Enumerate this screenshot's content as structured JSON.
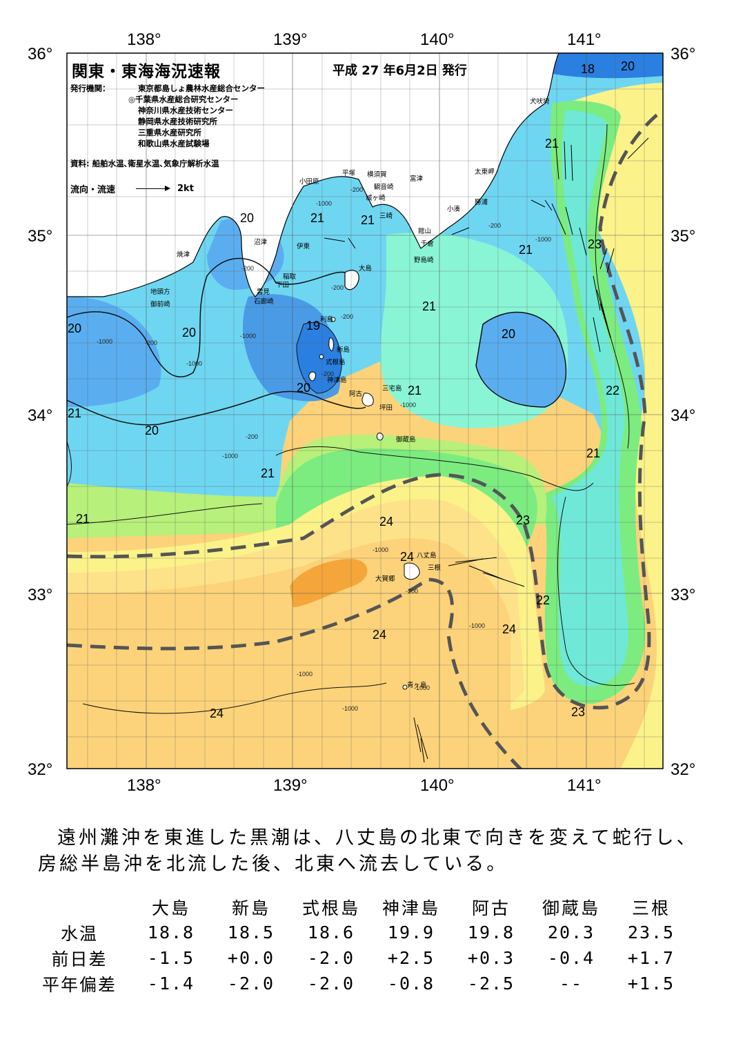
{
  "header": {
    "title": "関東・東海海況速報",
    "date": "平成 27 年6月2日 発行",
    "issuer_label": "発行機関：",
    "issuers": [
      "東京都島しょ農林水産総合センター",
      "◎千葉県水産総合研究センター",
      "神奈川県水産技術センター",
      "静岡県水産技術研究所",
      "三重県水産研究所",
      "和歌山県水産試験場"
    ],
    "source": "資料: 船舶水温､衛星水温､気象庁解析水温",
    "flow_legend_label": "流向・流速",
    "flow_legend_unit": "2kt"
  },
  "axes": {
    "lon_labels": [
      "138°",
      "139°",
      "140°",
      "141°"
    ],
    "lat_labels": [
      "36°",
      "35°",
      "34°",
      "33°",
      "32°"
    ]
  },
  "isotherm_labels": [
    "18",
    "20",
    "21",
    "21",
    "21",
    "20",
    "21",
    "23",
    "21",
    "19",
    "20",
    "20",
    "20",
    "21",
    "20",
    "20",
    "21",
    "21",
    "22",
    "21",
    "21",
    "24",
    "24",
    "23",
    "22",
    "24",
    "24",
    "24",
    "23",
    "20"
  ],
  "depth_labels": [
    "-200",
    "-1000",
    "-200",
    "-1000",
    "-200",
    "-1000",
    "-1000",
    "-200",
    "-200",
    "-200",
    "-1000",
    "-200",
    "-1000",
    "-1000",
    "-200",
    "-1000",
    "-1000",
    "-200",
    "-1000",
    "-1000",
    "-1000"
  ],
  "places": {
    "inubozaki": "犬吠埼",
    "taitomisaki": "太東岬",
    "katsuura": "勝浦",
    "kominato": "小湊",
    "tateyama": "館山",
    "chikura": "千倉",
    "nojimazaki": "野島崎",
    "futtsu": "富津",
    "kannonzaki": "観音崎",
    "yokosuka": "横須賀",
    "hiratsuka": "平塚",
    "odawara": "小田原",
    "jogasaki": "城ヶ崎",
    "misaki": "三崎",
    "numazu": "沼津",
    "ito": "伊東",
    "inatori": "稲取",
    "shimoda": "下田",
    "kumomi": "雲見",
    "irozaki": "石廊崎",
    "yaizu": "焼津",
    "jitogata": "地頭方",
    "omaezaki": "御前崎",
    "oshima": "大島",
    "toshima": "利島",
    "niijima": "新島",
    "shikinejima": "式根島",
    "kozushima": "神津島",
    "ako": "阿古",
    "miyakejima": "三宅島",
    "tsubota": "坪田",
    "mikurajima": "御蔵島",
    "hachijojima": "八丈島",
    "mitsune": "三根",
    "okago": "大賀郷",
    "aogashima": "青ヶ島"
  },
  "colors": {
    "deep_blue": "#2b7fe0",
    "blue": "#5aaef0",
    "light_blue": "#7fd0f5",
    "cyan": "#6fe8d8",
    "aqua": "#8af5d5",
    "green": "#7cec80",
    "light_green": "#b7f07a",
    "yellow": "#fbf28a",
    "light_orange": "#fde28a",
    "orange": "#fcd37a",
    "dark_orange": "#f5a63a",
    "land": "#ffffff",
    "kuroshio_axis": "#505050"
  },
  "comment": "遠州灘沖を東進した黒潮は、八丈島の北東で向きを変えて蛇行し、房総半島沖を北流した後、北東へ流去している。",
  "table": {
    "columns": [
      "大島",
      "新島",
      "式根島",
      "神津島",
      "阿古",
      "御蔵島",
      "三根"
    ],
    "rows": [
      {
        "label": "水温",
        "values": [
          "18.8",
          "18.5",
          "18.6",
          "19.9",
          "19.8",
          "20.3",
          "23.5"
        ]
      },
      {
        "label": "前日差",
        "values": [
          "-1.5",
          "+0.0",
          "-2.0",
          "+2.5",
          "+0.3",
          "-0.4",
          "+1.7"
        ]
      },
      {
        "label": "平年偏差",
        "values": [
          "-1.4",
          "-2.0",
          "-2.0",
          "-0.8",
          "-2.5",
          "--",
          "+1.5"
        ]
      }
    ]
  }
}
